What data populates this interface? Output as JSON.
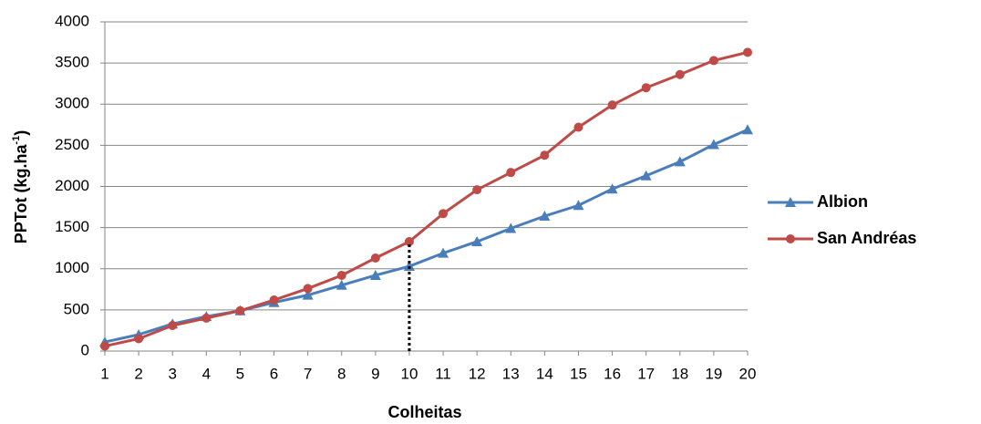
{
  "chart_data": {
    "type": "line",
    "xlabel": "Colheitas",
    "ylabel": {
      "text": "PPTot (kg.ha",
      "sup": "-1",
      "end": ")"
    },
    "x": [
      1,
      2,
      3,
      4,
      5,
      6,
      7,
      8,
      9,
      10,
      11,
      12,
      13,
      14,
      15,
      16,
      17,
      18,
      19,
      20
    ],
    "xlim": [
      1,
      20
    ],
    "xticks": [
      1,
      2,
      3,
      4,
      5,
      6,
      7,
      8,
      9,
      10,
      11,
      12,
      13,
      14,
      15,
      16,
      17,
      18,
      19,
      20
    ],
    "ylim": [
      0,
      4000
    ],
    "yticks": [
      0,
      500,
      1000,
      1500,
      2000,
      2500,
      3000,
      3500,
      4000
    ],
    "grid": true,
    "legend": "right",
    "series": [
      {
        "name": "Albion",
        "color": "#4a7ebb",
        "marker": "triangle",
        "values": [
          110,
          200,
          330,
          420,
          490,
          590,
          680,
          800,
          920,
          1030,
          1190,
          1330,
          1490,
          1640,
          1770,
          1970,
          2130,
          2300,
          2510,
          2690
        ]
      },
      {
        "name": "San Andréas",
        "color": "#be4b48",
        "marker": "circle",
        "values": [
          60,
          150,
          310,
          400,
          490,
          620,
          760,
          920,
          1130,
          1330,
          1670,
          1960,
          2170,
          2380,
          2720,
          2990,
          3200,
          3360,
          3530,
          3630
        ]
      }
    ],
    "vline": {
      "x": 10,
      "y_top": 1330
    }
  }
}
